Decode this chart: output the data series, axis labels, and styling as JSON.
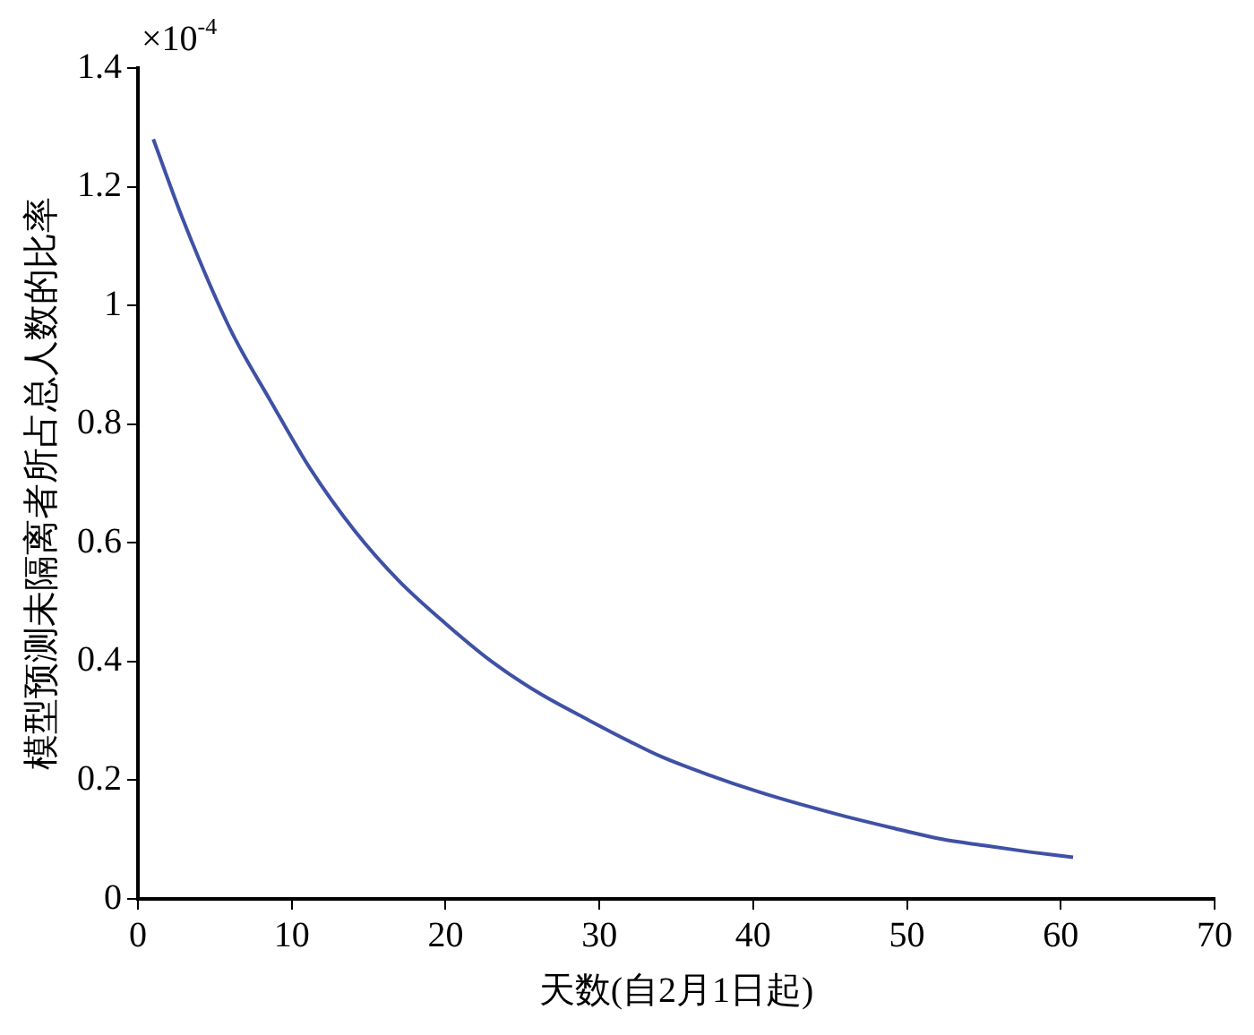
{
  "chart_data": {
    "type": "line",
    "xlabel": "天数(自2月1日起)",
    "ylabel": "模型预测未隔离者所占总人数的比率",
    "annotations": [
      "×10$^{-4}$"
    ],
    "x": [
      1,
      3,
      6,
      8.6,
      11.2,
      14.1,
      17,
      20,
      23,
      26,
      29.4,
      32,
      34,
      37,
      40.4,
      43,
      46,
      49,
      52.2,
      55,
      58,
      60.8
    ],
    "series": [
      {
        "color": "#3f51a5",
        "values": [
          1.28,
          1.14,
          0.96,
          0.84,
          0.725,
          0.62,
          0.535,
          0.464,
          0.4,
          0.348,
          0.3,
          0.265,
          0.24,
          0.21,
          0.18,
          0.16,
          0.139,
          0.12,
          0.101,
          0.09,
          0.079,
          0.07
        ]
      }
    ],
    "xlim": [
      0,
      70
    ],
    "xticks": [
      0,
      10,
      20,
      30,
      40,
      50,
      60,
      70
    ],
    "ylim": [
      0,
      1.4
    ],
    "yticks": [
      0,
      0.2,
      0.4,
      0.6,
      0.8,
      1,
      1.2,
      1.4
    ],
    "legend": false,
    "marker": "none",
    "line_style": "solid"
  }
}
